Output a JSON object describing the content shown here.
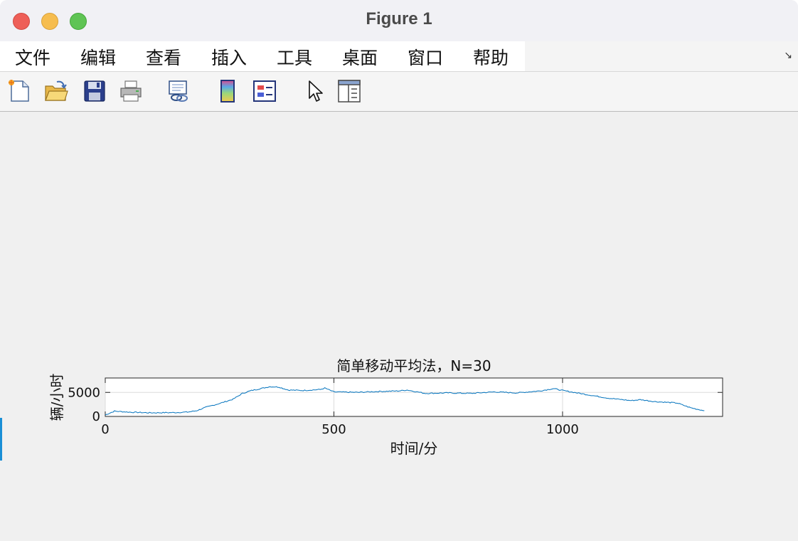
{
  "window": {
    "title": "Figure 1"
  },
  "menu": {
    "items": [
      "文件",
      "编辑",
      "查看",
      "插入",
      "工具",
      "桌面",
      "窗口",
      "帮助"
    ],
    "dock_arrow": "↘"
  },
  "toolbar": {
    "icons": [
      "new-figure-icon",
      "open-file-icon",
      "save-icon",
      "print-icon",
      "link-plot-icon",
      "insert-colorbar-icon",
      "insert-legend-icon",
      "edit-plot-pointer-icon",
      "property-inspector-icon"
    ]
  },
  "chart_data": {
    "type": "line",
    "title": "简单移动平均法，N=30",
    "xlabel": "时间/分",
    "ylabel": "辆/小时",
    "xlim": [
      0,
      1350
    ],
    "ylim": [
      0,
      8000
    ],
    "xticks": [
      0,
      500,
      1000
    ],
    "yticks": [
      0,
      5000
    ],
    "xticklabels": [
      "0",
      "500",
      "1000"
    ],
    "yticklabels": [
      "0",
      "5000"
    ],
    "grid": true,
    "color": "#0072bd",
    "series": [
      {
        "x": [
          0,
          20,
          50,
          100,
          150,
          180,
          200,
          220,
          250,
          280,
          300,
          320,
          340,
          360,
          380,
          400,
          430,
          470,
          480,
          500,
          550,
          600,
          640,
          660,
          700,
          750,
          800,
          850,
          900,
          950,
          980,
          1000,
          1050,
          1100,
          1150,
          1170,
          1200,
          1250,
          1280,
          1310
        ],
        "y": [
          300,
          1100,
          900,
          750,
          800,
          900,
          1200,
          1900,
          2700,
          3600,
          4800,
          5400,
          5800,
          6200,
          6100,
          5500,
          5400,
          5600,
          5900,
          5100,
          5000,
          5200,
          5300,
          5500,
          4800,
          4900,
          4800,
          5100,
          4900,
          5300,
          5800,
          5400,
          4600,
          3800,
          3300,
          3500,
          3100,
          2800,
          1800,
          1200
        ]
      }
    ]
  }
}
